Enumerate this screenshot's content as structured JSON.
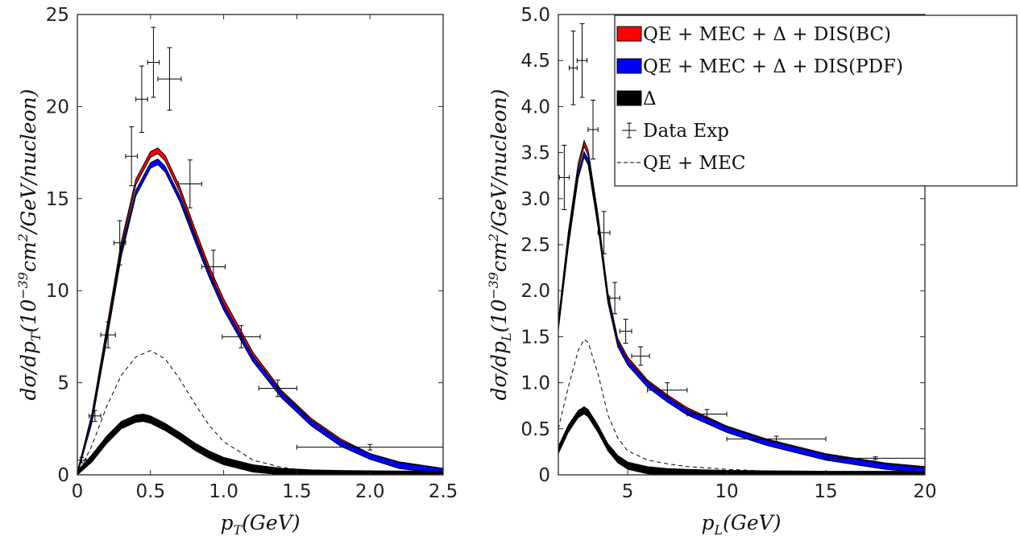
{
  "chart_data": [
    {
      "type": "line",
      "xlabel": "p_T(GeV)",
      "ylabel": "dσ/dp_T(10^-39 cm^2/GeV/nucleon)",
      "xlim": [
        0,
        2.5
      ],
      "ylim": [
        0,
        25
      ],
      "xticks": [
        "0",
        "0.5",
        "1.0",
        "1.5",
        "2.0",
        "2.5"
      ],
      "yticks": [
        "0",
        "5",
        "10",
        "15",
        "20",
        "25"
      ],
      "grid": false,
      "series": [
        {
          "name": "QE + MEC + Δ + DIS(BC)",
          "color": "#ff0000",
          "x": [
            0,
            0.1,
            0.2,
            0.3,
            0.4,
            0.5,
            0.55,
            0.6,
            0.7,
            0.8,
            0.9,
            1.0,
            1.2,
            1.4,
            1.6,
            1.8,
            2.0,
            2.2,
            2.5
          ],
          "y": [
            0,
            3.2,
            7.8,
            12.5,
            15.9,
            17.4,
            17.6,
            17.2,
            15.5,
            13.3,
            11.2,
            9.4,
            6.5,
            4.4,
            2.9,
            1.8,
            1.0,
            0.55,
            0.2
          ]
        },
        {
          "name": "QE + MEC + Δ + DIS(PDF)",
          "color": "#0000ff",
          "x": [
            0,
            0.1,
            0.2,
            0.3,
            0.4,
            0.5,
            0.55,
            0.6,
            0.7,
            0.8,
            0.9,
            1.0,
            1.2,
            1.4,
            1.6,
            1.8,
            2.0,
            2.2,
            2.5
          ],
          "y": [
            0,
            3.0,
            7.4,
            12.0,
            15.3,
            16.8,
            17.0,
            16.6,
            15.0,
            12.9,
            10.9,
            9.1,
            6.3,
            4.3,
            2.8,
            1.7,
            1.0,
            0.5,
            0.2
          ]
        },
        {
          "name": "Δ",
          "color": "#000000",
          "x": [
            0,
            0.1,
            0.2,
            0.3,
            0.4,
            0.45,
            0.5,
            0.6,
            0.7,
            0.8,
            0.9,
            1.0,
            1.2,
            1.4,
            1.6,
            1.8,
            2.0,
            2.2,
            2.5
          ],
          "y": [
            0,
            0.9,
            1.9,
            2.7,
            3.05,
            3.1,
            3.0,
            2.6,
            2.1,
            1.55,
            1.1,
            0.75,
            0.35,
            0.15,
            0.07,
            0.04,
            0.02,
            0.01,
            0.0
          ]
        },
        {
          "name": "QE + MEC",
          "color": "#000000",
          "style": "dashed",
          "x": [
            0,
            0.1,
            0.2,
            0.3,
            0.4,
            0.5,
            0.6,
            0.7,
            0.8,
            0.9,
            1.0,
            1.2,
            1.4,
            1.6,
            1.8,
            2.0,
            2.2,
            2.5
          ],
          "y": [
            0,
            1.6,
            3.7,
            5.4,
            6.4,
            6.75,
            6.3,
            5.2,
            3.9,
            2.7,
            1.8,
            0.8,
            0.4,
            0.2,
            0.1,
            0.05,
            0.03,
            0.0
          ]
        },
        {
          "name": "Data Exp",
          "type": "errorbar",
          "points": [
            {
              "x": 0.03,
              "y": 0.8,
              "xerr": 0.03,
              "yerr": 0.15
            },
            {
              "x": 0.12,
              "y": 3.2,
              "xerr": 0.04,
              "yerr": 0.3
            },
            {
              "x": 0.21,
              "y": 7.6,
              "xerr": 0.05,
              "yerr": 0.7
            },
            {
              "x": 0.29,
              "y": 12.6,
              "xerr": 0.04,
              "yerr": 1.2
            },
            {
              "x": 0.37,
              "y": 17.3,
              "xerr": 0.04,
              "yerr": 1.6
            },
            {
              "x": 0.44,
              "y": 20.4,
              "xerr": 0.04,
              "yerr": 1.8
            },
            {
              "x": 0.52,
              "y": 22.4,
              "xerr": 0.04,
              "yerr": 1.9
            },
            {
              "x": 0.63,
              "y": 21.5,
              "xerr": 0.08,
              "yerr": 1.7
            },
            {
              "x": 0.77,
              "y": 15.8,
              "xerr": 0.08,
              "yerr": 1.3
            },
            {
              "x": 0.93,
              "y": 11.3,
              "xerr": 0.08,
              "yerr": 0.9
            },
            {
              "x": 1.12,
              "y": 7.5,
              "xerr": 0.13,
              "yerr": 0.6
            },
            {
              "x": 1.37,
              "y": 4.7,
              "xerr": 0.13,
              "yerr": 0.45
            },
            {
              "x": 2.0,
              "y": 1.5,
              "xerr": 0.5,
              "yerr": 0.15
            }
          ]
        }
      ]
    },
    {
      "type": "line",
      "xlabel": "p_L(GeV)",
      "ylabel": "dσ/dp_L(10^-39 cm^2/GeV/nucleon)",
      "xlim": [
        1.5,
        20
      ],
      "ylim": [
        0,
        5
      ],
      "xticks": [
        "5",
        "10",
        "15",
        "20"
      ],
      "yticks": [
        "0",
        "0.5",
        "1.0",
        "1.5",
        "2.0",
        "2.5",
        "3.0",
        "3.5",
        "4.0",
        "4.5",
        "5.0"
      ],
      "grid": false,
      "legend_position": "top-right",
      "series": [
        {
          "name": "QE + MEC + Δ + DIS(BC)",
          "color": "#ff0000",
          "x": [
            1.5,
            2.0,
            2.5,
            2.8,
            3.0,
            3.5,
            4.0,
            4.5,
            5,
            6,
            7,
            8,
            10,
            12,
            15,
            18,
            20
          ],
          "y": [
            1.65,
            2.6,
            3.35,
            3.6,
            3.5,
            2.8,
            1.95,
            1.45,
            1.25,
            1.0,
            0.84,
            0.7,
            0.5,
            0.36,
            0.2,
            0.1,
            0.06
          ]
        },
        {
          "name": "QE + MEC + Δ + DIS(PDF)",
          "color": "#0000ff",
          "x": [
            1.5,
            2.0,
            2.5,
            2.8,
            3.0,
            3.5,
            4.0,
            4.5,
            5,
            6,
            7,
            8,
            10,
            12,
            15,
            18,
            20
          ],
          "y": [
            1.6,
            2.5,
            3.25,
            3.48,
            3.4,
            2.72,
            1.9,
            1.42,
            1.22,
            0.98,
            0.82,
            0.68,
            0.49,
            0.35,
            0.19,
            0.09,
            0.05
          ]
        },
        {
          "name": "Δ",
          "color": "#000000",
          "x": [
            1.5,
            2.0,
            2.5,
            2.8,
            3.0,
            3.5,
            4.0,
            4.5,
            5,
            6,
            7,
            8,
            10,
            12,
            15,
            20
          ],
          "y": [
            0.27,
            0.5,
            0.66,
            0.7,
            0.67,
            0.5,
            0.3,
            0.17,
            0.1,
            0.05,
            0.03,
            0.02,
            0.01,
            0.005,
            0.0,
            0.0
          ]
        },
        {
          "name": "QE + MEC",
          "color": "#000000",
          "style": "dashed",
          "x": [
            1.5,
            2.0,
            2.5,
            2.8,
            3.0,
            3.5,
            4.0,
            4.5,
            5,
            6,
            7,
            8,
            10,
            12,
            15,
            20
          ],
          "y": [
            0.5,
            0.95,
            1.35,
            1.47,
            1.44,
            1.1,
            0.65,
            0.4,
            0.26,
            0.16,
            0.12,
            0.09,
            0.06,
            0.04,
            0.02,
            0.0
          ]
        },
        {
          "name": "Data Exp",
          "type": "errorbar",
          "points": [
            {
              "x": 1.8,
              "y": 3.23,
              "xerr": 0.25,
              "yerr": 0.35
            },
            {
              "x": 2.25,
              "y": 4.42,
              "xerr": 0.2,
              "yerr": 0.4
            },
            {
              "x": 2.7,
              "y": 4.5,
              "xerr": 0.25,
              "yerr": 0.4
            },
            {
              "x": 3.25,
              "y": 3.75,
              "xerr": 0.25,
              "yerr": 0.32
            },
            {
              "x": 3.8,
              "y": 2.63,
              "xerr": 0.3,
              "yerr": 0.23
            },
            {
              "x": 4.35,
              "y": 1.92,
              "xerr": 0.25,
              "yerr": 0.17
            },
            {
              "x": 4.9,
              "y": 1.56,
              "xerr": 0.3,
              "yerr": 0.13
            },
            {
              "x": 5.65,
              "y": 1.29,
              "xerr": 0.45,
              "yerr": 0.1
            },
            {
              "x": 7.0,
              "y": 0.92,
              "xerr": 1.0,
              "yerr": 0.08
            },
            {
              "x": 9.0,
              "y": 0.66,
              "xerr": 1.0,
              "yerr": 0.05
            },
            {
              "x": 12.5,
              "y": 0.39,
              "xerr": 2.5,
              "yerr": 0.03
            },
            {
              "x": 17.5,
              "y": 0.18,
              "xerr": 2.5,
              "yerr": 0.015
            }
          ]
        }
      ]
    }
  ],
  "legend": {
    "entries": [
      {
        "label": "QE + MEC + Δ + DIS(BC)",
        "swatch": "#ff0000",
        "kind": "patch"
      },
      {
        "label": "QE + MEC + Δ + DIS(PDF)",
        "swatch": "#0000ff",
        "kind": "patch"
      },
      {
        "label": "Δ",
        "swatch": "#000000",
        "kind": "patch"
      },
      {
        "label": "Data Exp",
        "swatch": "#000000",
        "kind": "errorbar"
      },
      {
        "label": "QE + MEC",
        "swatch": "#000000",
        "kind": "dashed"
      }
    ]
  }
}
